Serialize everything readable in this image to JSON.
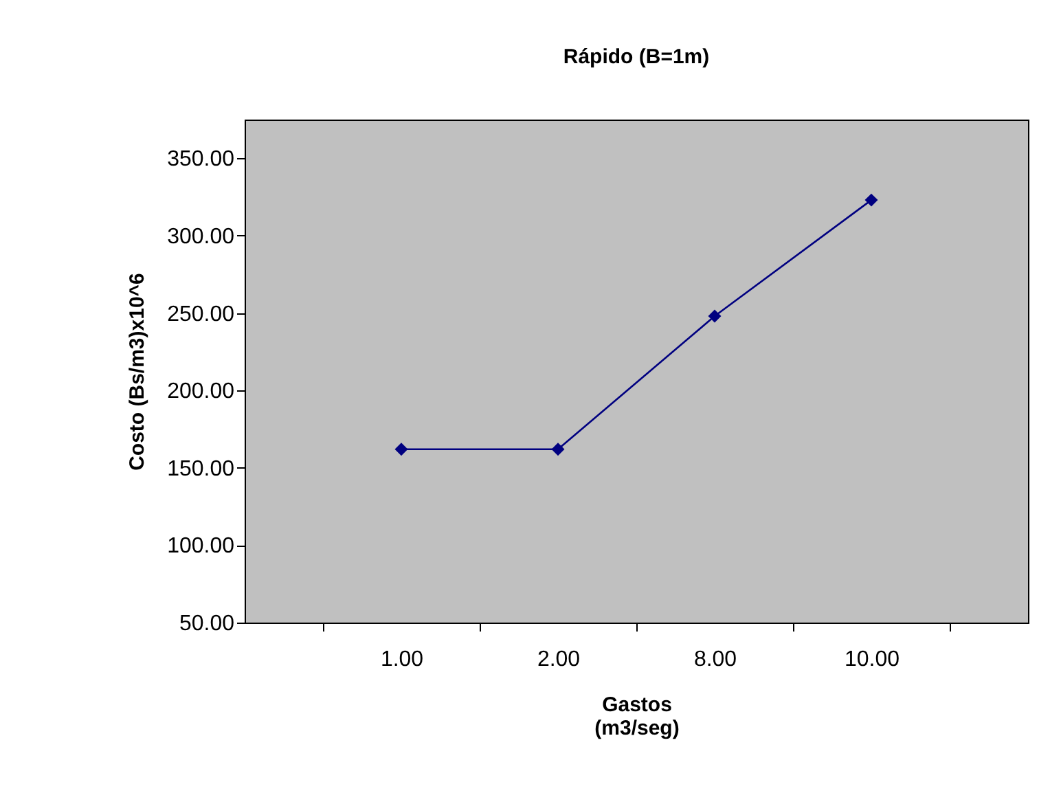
{
  "chart_data": {
    "type": "line",
    "title": "Rápido  (B=1m)",
    "xlabel": "Gastos\n(m3/seg)",
    "ylabel": "Costo (Bs/m3)x10^6",
    "categories": [
      "1.00",
      "2.00",
      "8.00",
      "10.00"
    ],
    "series": [
      {
        "color": "#000080",
        "values": [
          162,
          162,
          248,
          323
        ]
      }
    ],
    "ylim": [
      50,
      375
    ],
    "yticks": [
      {
        "value": 50,
        "label": "50.00"
      },
      {
        "value": 100,
        "label": "100.00"
      },
      {
        "value": 150,
        "label": "150.00"
      },
      {
        "value": 200,
        "label": "200.00"
      },
      {
        "value": 250,
        "label": "250.00"
      },
      {
        "value": 300,
        "label": "300.00"
      },
      {
        "value": 350,
        "label": "350.00"
      }
    ],
    "marker": "diamond",
    "line_style": "solid"
  }
}
